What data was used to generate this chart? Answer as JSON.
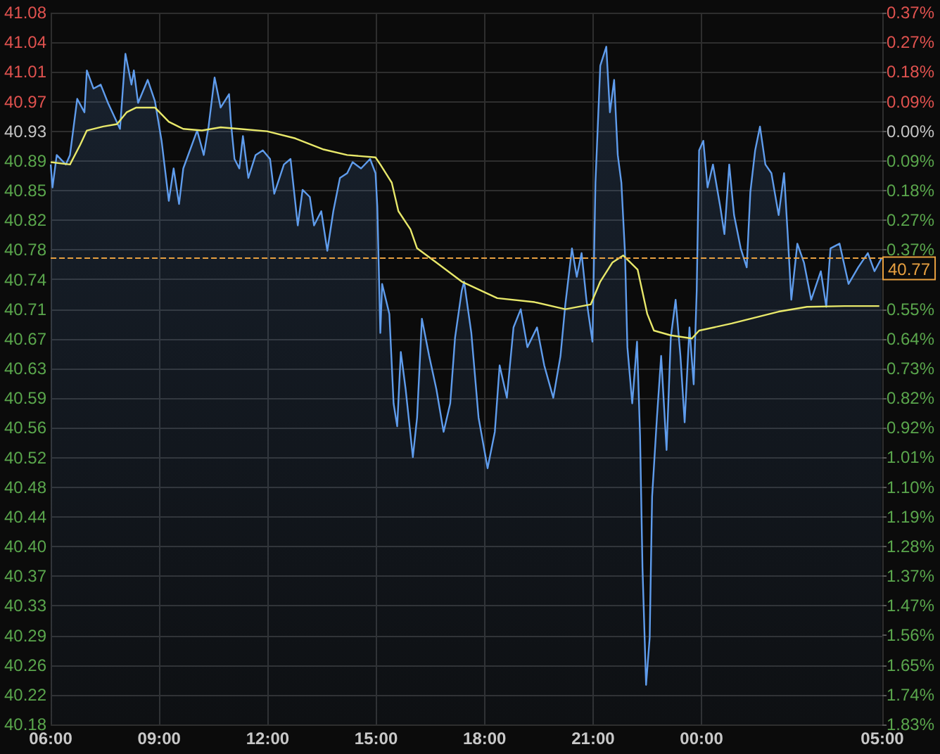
{
  "chart_data": {
    "type": "area",
    "xlim": [
      "2000-01-01T06:00",
      "2000-01-02T05:00"
    ],
    "xticks": [
      {
        "value": "2000-01-01T06:00",
        "label": "06:00"
      },
      {
        "value": "2000-01-01T09:00",
        "label": "09:00"
      },
      {
        "value": "2000-01-01T12:00",
        "label": "12:00"
      },
      {
        "value": "2000-01-01T15:00",
        "label": "15:00"
      },
      {
        "value": "2000-01-01T18:00",
        "label": "18:00"
      },
      {
        "value": "2000-01-01T21:00",
        "label": "21:00"
      },
      {
        "value": "2000-01-02T00:00",
        "label": "00:00"
      },
      {
        "value": "2000-01-02T05:00",
        "label": "05:00"
      }
    ],
    "ylim": [
      40.18,
      41.08
    ],
    "yticks": [
      {
        "value": 41.08,
        "label": "41.08"
      },
      {
        "value": 41.0425,
        "label": "41.04"
      },
      {
        "value": 41.005,
        "label": "41.01"
      },
      {
        "value": 40.9675,
        "label": "40.97"
      },
      {
        "value": 40.93,
        "label": "40.93"
      },
      {
        "value": 40.8925,
        "label": "40.89"
      },
      {
        "value": 40.855,
        "label": "40.85"
      },
      {
        "value": 40.8175,
        "label": "40.82"
      },
      {
        "value": 40.78,
        "label": "40.78"
      },
      {
        "value": 40.7425,
        "label": "40.74"
      },
      {
        "value": 40.705,
        "label": "40.71"
      },
      {
        "value": 40.6675,
        "label": "40.67"
      },
      {
        "value": 40.63,
        "label": "40.63"
      },
      {
        "value": 40.5925,
        "label": "40.59"
      },
      {
        "value": 40.555,
        "label": "40.56"
      },
      {
        "value": 40.5175,
        "label": "40.52"
      },
      {
        "value": 40.48,
        "label": "40.48"
      },
      {
        "value": 40.4425,
        "label": "40.44"
      },
      {
        "value": 40.405,
        "label": "40.40"
      },
      {
        "value": 40.3675,
        "label": "40.37"
      },
      {
        "value": 40.33,
        "label": "40.33"
      },
      {
        "value": 40.2925,
        "label": "40.29"
      },
      {
        "value": 40.255,
        "label": "40.26"
      },
      {
        "value": 40.2175,
        "label": "40.22"
      },
      {
        "value": 40.18,
        "label": "40.18"
      }
    ],
    "y2lim": [
      -1.8324,
      0.3665
    ],
    "y2ticks": [
      {
        "value": 0.3665,
        "label": "0.37%"
      },
      {
        "value": 0.2749,
        "label": "0.27%"
      },
      {
        "value": 0.1832,
        "label": "0.18%"
      },
      {
        "value": 0.0916,
        "label": "0.09%"
      },
      {
        "value": 0,
        "label": "0.00%"
      },
      {
        "value": -0.0916,
        "label": "0.09%"
      },
      {
        "value": -0.1832,
        "label": "0.18%"
      },
      {
        "value": -0.2749,
        "label": "0.27%"
      },
      {
        "value": -0.3665,
        "label": "0.37%"
      },
      {
        "value": -0.5497,
        "label": "0.55%"
      },
      {
        "value": -0.6413,
        "label": "0.64%"
      },
      {
        "value": -0.733,
        "label": "0.73%"
      },
      {
        "value": -0.8246,
        "label": "0.82%"
      },
      {
        "value": -0.9162,
        "label": "0.92%"
      },
      {
        "value": -1.0078,
        "label": "1.01%"
      },
      {
        "value": -1.0994,
        "label": "1.10%"
      },
      {
        "value": -1.1911,
        "label": "1.19%"
      },
      {
        "value": -1.2827,
        "label": "1.28%"
      },
      {
        "value": -1.3743,
        "label": "1.37%"
      },
      {
        "value": -1.4659,
        "label": "1.47%"
      },
      {
        "value": -1.5575,
        "label": "1.56%"
      },
      {
        "value": -1.6492,
        "label": "1.65%"
      },
      {
        "value": -1.7408,
        "label": "1.74%"
      },
      {
        "value": -1.8324,
        "label": "1.83%"
      }
    ],
    "series": [
      {
        "type": "area",
        "color": "#5f9cec",
        "x": [
          "2000-01-01T06:00",
          "2000-01-01T06:03",
          "2000-01-01T06:10",
          "2000-01-01T06:25",
          "2000-01-01T06:32",
          "2000-01-01T06:44",
          "2000-01-01T06:56",
          "2000-01-01T07:00",
          "2000-01-01T07:11",
          "2000-01-01T07:23",
          "2000-01-01T07:35",
          "2000-01-01T07:55",
          "2000-01-01T08:04",
          "2000-01-01T08:14",
          "2000-01-01T08:18",
          "2000-01-01T08:25",
          "2000-01-01T08:41",
          "2000-01-01T08:53",
          "2000-01-01T09:04",
          "2000-01-01T09:16",
          "2000-01-01T09:24",
          "2000-01-01T09:33",
          "2000-01-01T09:40",
          "2000-01-01T10:03",
          "2000-01-01T10:14",
          "2000-01-01T10:22",
          "2000-01-01T10:32",
          "2000-01-01T10:42",
          "2000-01-01T10:56",
          "2000-01-01T10:59",
          "2000-01-01T11:05",
          "2000-01-01T11:13",
          "2000-01-01T11:19",
          "2000-01-01T11:28",
          "2000-01-01T11:40",
          "2000-01-01T11:52",
          "2000-01-01T12:04",
          "2000-01-01T12:11",
          "2000-01-01T12:27",
          "2000-01-01T12:38",
          "2000-01-01T12:50",
          "2000-01-01T12:58",
          "2000-01-01T13:10",
          "2000-01-01T13:17",
          "2000-01-01T13:29",
          "2000-01-01T13:39",
          "2000-01-01T13:49",
          "2000-01-01T14:00",
          "2000-01-01T14:12",
          "2000-01-01T14:21",
          "2000-01-01T14:35",
          "2000-01-01T14:50",
          "2000-01-01T14:59",
          "2000-01-01T15:02",
          "2000-01-01T15:07",
          "2000-01-01T15:10",
          "2000-01-01T15:22",
          "2000-01-01T15:29",
          "2000-01-01T15:35",
          "2000-01-01T15:41",
          "2000-01-01T15:49",
          "2000-01-01T16:01",
          "2000-01-01T16:08",
          "2000-01-01T16:16",
          "2000-01-01T16:28",
          "2000-01-01T16:40",
          "2000-01-01T16:52",
          "2000-01-01T17:03",
          "2000-01-01T17:11",
          "2000-01-01T17:22",
          "2000-01-01T17:26",
          "2000-01-01T17:38",
          "2000-01-01T17:50",
          "2000-01-01T18:05",
          "2000-01-01T18:17",
          "2000-01-01T18:25",
          "2000-01-01T18:37",
          "2000-01-01T18:48",
          "2000-01-01T19:00",
          "2000-01-01T19:11",
          "2000-01-01T19:27",
          "2000-01-01T19:39",
          "2000-01-01T19:54",
          "2000-01-01T20:06",
          "2000-01-01T20:14",
          "2000-01-01T20:25",
          "2000-01-01T20:33",
          "2000-01-01T20:41",
          "2000-01-01T20:49",
          "2000-01-01T20:59",
          "2000-01-01T21:04",
          "2000-01-01T21:12",
          "2000-01-01T21:22",
          "2000-01-01T21:28",
          "2000-01-01T21:35",
          "2000-01-01T21:41",
          "2000-01-01T21:47",
          "2000-01-01T21:53",
          "2000-01-01T21:57",
          "2000-01-01T22:05",
          "2000-01-01T22:13",
          "2000-01-01T22:18",
          "2000-01-01T22:22",
          "2000-01-01T22:28",
          "2000-01-01T22:34",
          "2000-01-01T22:38",
          "2000-01-01T22:46",
          "2000-01-01T22:53",
          "2000-01-01T23:02",
          "2000-01-01T23:09",
          "2000-01-01T23:17",
          "2000-01-01T23:25",
          "2000-01-01T23:32",
          "2000-01-01T23:40",
          "2000-01-01T23:47",
          "2000-01-01T23:52",
          "2000-01-01T23:56",
          "2000-01-02T00:03",
          "2000-01-02T00:10",
          "2000-01-02T00:19",
          "2000-01-02T00:31",
          "2000-01-02T00:38",
          "2000-01-02T00:46",
          "2000-01-02T00:54",
          "2000-01-02T01:05",
          "2000-01-02T01:15",
          "2000-01-02T01:21",
          "2000-01-02T01:29",
          "2000-01-02T01:37",
          "2000-01-02T01:46",
          "2000-01-02T01:56",
          "2000-01-02T02:08",
          "2000-01-02T02:17",
          "2000-01-02T02:23",
          "2000-01-02T02:29",
          "2000-01-02T02:39",
          "2000-01-02T02:50",
          "2000-01-02T03:02",
          "2000-01-02T03:18",
          "2000-01-02T03:27",
          "2000-01-02T03:34",
          "2000-01-02T03:49",
          "2000-01-02T04:04",
          "2000-01-02T04:20",
          "2000-01-02T04:36",
          "2000-01-02T04:47",
          "2000-01-02T04:59"
        ],
        "values": [
          40.888,
          40.859,
          40.9,
          40.888,
          40.9,
          40.971,
          40.954,
          41.007,
          40.984,
          40.989,
          40.966,
          40.933,
          41.028,
          40.989,
          41.007,
          40.966,
          40.995,
          40.968,
          40.918,
          40.842,
          40.883,
          40.838,
          40.883,
          40.931,
          40.9,
          40.936,
          40.998,
          40.96,
          40.977,
          40.942,
          40.895,
          40.883,
          40.924,
          40.871,
          40.9,
          40.906,
          40.895,
          40.851,
          40.888,
          40.895,
          40.811,
          40.856,
          40.847,
          40.811,
          40.829,
          40.779,
          40.829,
          40.871,
          40.877,
          40.891,
          40.883,
          40.895,
          40.877,
          40.835,
          40.675,
          40.737,
          40.699,
          40.586,
          40.557,
          40.651,
          40.604,
          40.518,
          40.568,
          40.693,
          40.646,
          40.604,
          40.55,
          40.586,
          40.669,
          40.728,
          40.74,
          40.675,
          40.568,
          40.504,
          40.55,
          40.634,
          40.593,
          40.682,
          40.705,
          40.657,
          40.682,
          40.634,
          40.593,
          40.646,
          40.711,
          40.782,
          40.746,
          40.776,
          40.717,
          40.664,
          40.865,
          41.013,
          41.037,
          40.954,
          40.995,
          40.9,
          40.865,
          40.776,
          40.657,
          40.586,
          40.664,
          40.545,
          40.379,
          40.23,
          40.29,
          40.468,
          40.568,
          40.646,
          40.527,
          40.669,
          40.717,
          40.646,
          40.562,
          40.682,
          40.61,
          40.728,
          40.906,
          40.918,
          40.859,
          40.888,
          40.835,
          40.8,
          40.888,
          40.824,
          40.782,
          40.758,
          40.853,
          40.906,
          40.936,
          40.888,
          40.877,
          40.824,
          40.877,
          40.8,
          40.717,
          40.788,
          40.764,
          40.717,
          40.753,
          40.708,
          40.782,
          40.788,
          40.737,
          40.758,
          40.776,
          40.753,
          40.77
        ]
      },
      {
        "type": "line",
        "color": "#e8e86a",
        "x": [
          "2000-01-01T06:00",
          "2000-01-01T06:32",
          "2000-01-01T06:49",
          "2000-01-01T07:00",
          "2000-01-01T07:27",
          "2000-01-01T07:50",
          "2000-01-01T08:06",
          "2000-01-01T08:22",
          "2000-01-01T08:53",
          "2000-01-01T09:16",
          "2000-01-01T09:40",
          "2000-01-01T10:11",
          "2000-01-01T10:42",
          "2000-01-01T11:13",
          "2000-01-01T11:59",
          "2000-01-01T12:46",
          "2000-01-01T13:33",
          "2000-01-01T14:12",
          "2000-01-01T14:59",
          "2000-01-01T15:07",
          "2000-01-01T15:26",
          "2000-01-01T15:37",
          "2000-01-01T15:57",
          "2000-01-01T16:08",
          "2000-01-01T16:40",
          "2000-01-01T17:22",
          "2000-01-01T18:21",
          "2000-01-01T19:23",
          "2000-01-01T20:14",
          "2000-01-01T20:56",
          "2000-01-01T21:12",
          "2000-01-01T21:32",
          "2000-01-01T21:50",
          "2000-01-01T22:14",
          "2000-01-01T22:30",
          "2000-01-01T22:41",
          "2000-01-01T23:09",
          "2000-01-01T23:44",
          "2000-01-01T23:56",
          "2000-01-02T00:50",
          "2000-01-02T02:08",
          "2000-01-02T02:55",
          "2000-01-02T03:57",
          "2000-01-02T04:55"
        ],
        "values": [
          40.891,
          40.888,
          40.913,
          40.931,
          40.936,
          40.939,
          40.954,
          40.96,
          40.96,
          40.942,
          40.933,
          40.931,
          40.935,
          40.933,
          40.93,
          40.921,
          40.907,
          40.9,
          40.897,
          40.888,
          40.865,
          40.829,
          40.806,
          40.782,
          40.764,
          40.74,
          40.719,
          40.714,
          40.705,
          40.711,
          40.74,
          40.764,
          40.773,
          40.755,
          40.699,
          40.678,
          40.672,
          40.668,
          40.678,
          40.687,
          40.702,
          40.708,
          40.709,
          40.709
        ]
      }
    ],
    "ref_lines": [
      {
        "axis": "y",
        "value": 40.77,
        "label": "40.77",
        "color": "#e8a040",
        "line_style": "dashed"
      }
    ],
    "grid": true,
    "marker": "none",
    "line_style": "solid"
  }
}
